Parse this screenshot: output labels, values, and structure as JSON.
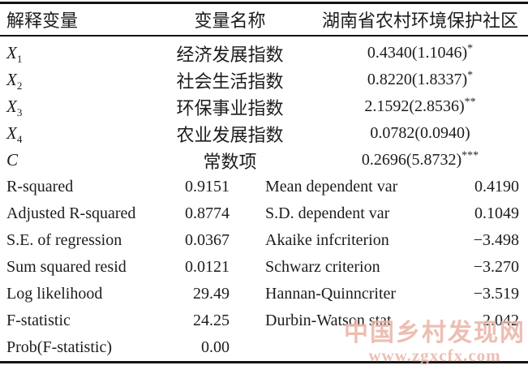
{
  "table": {
    "header": {
      "col1": "解释变量",
      "col2": "变量名称",
      "col3": "湖南省农村环境保护社区"
    },
    "coef_rows": [
      {
        "symbol": "X",
        "sub": "1",
        "name": "经济发展指数",
        "value": "0.4340(1.1046)",
        "stars": "*"
      },
      {
        "symbol": "X",
        "sub": "2",
        "name": "社会生活指数",
        "value": "0.8220(1.8337)",
        "stars": "*"
      },
      {
        "symbol": "X",
        "sub": "3",
        "name": "环保事业指数",
        "value": "2.1592(2.8536)",
        "stars": "**"
      },
      {
        "symbol": "X",
        "sub": "4",
        "name": "农业发展指数",
        "value": "0.0782(0.0940)",
        "stars": ""
      },
      {
        "symbol": "C",
        "sub": "",
        "name": "常数项",
        "value": "0.2696(5.8732)",
        "stars": "***"
      }
    ],
    "stats_rows": [
      {
        "label1": "R-squared",
        "value1": "0.9151",
        "label2": "Mean dependent var",
        "value2": "0.4190"
      },
      {
        "label1": "Adjusted R-squared",
        "value1": "0.8774",
        "label2": "S.D. dependent var",
        "value2": "0.1049"
      },
      {
        "label1": "S.E. of regression",
        "value1": "0.0367",
        "label2": "Akaike infcriterion",
        "value2": "−3.498"
      },
      {
        "label1": "Sum squared resid",
        "value1": "0.0121",
        "label2": "Schwarz criterion",
        "value2": "−3.270"
      },
      {
        "label1": "Log likelihood",
        "value1": "29.49",
        "label2": "Hannan-Quinncriter",
        "value2": "−3.519"
      },
      {
        "label1": "F-statistic",
        "value1": "24.25",
        "label2": "Durbin-Watson stat",
        "value2": "2.042"
      },
      {
        "label1": "Prob(F-statistic)",
        "value1": "0.00",
        "label2": "",
        "value2": ""
      }
    ]
  },
  "watermark": {
    "line1": "中国乡村发现网",
    "line2": "www.zgxcfx.com",
    "color": "#eab3a6"
  },
  "colors": {
    "text": "#1c1c1c",
    "border": "#141414",
    "background": "#ffffff"
  }
}
